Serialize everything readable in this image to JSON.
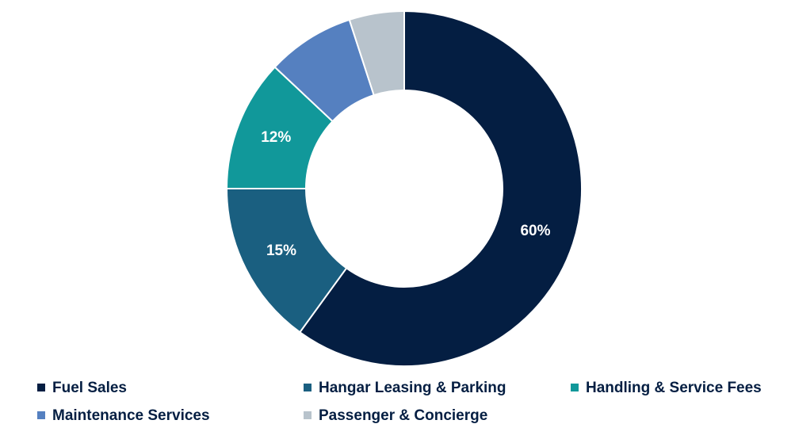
{
  "chart_data": {
    "type": "donut",
    "categories": [
      "Fuel Sales",
      "Hangar Leasing & Parking",
      "Handling & Service Fees",
      "Maintenance Services",
      "Passenger & Concierge"
    ],
    "values": [
      60,
      15,
      12,
      8,
      5
    ],
    "value_labels": [
      "60%",
      "15%",
      "12%",
      null,
      null
    ],
    "colors": [
      "#041e42",
      "#1a5f80",
      "#11989a",
      "#5580c0",
      "#b8c3cc"
    ]
  }
}
